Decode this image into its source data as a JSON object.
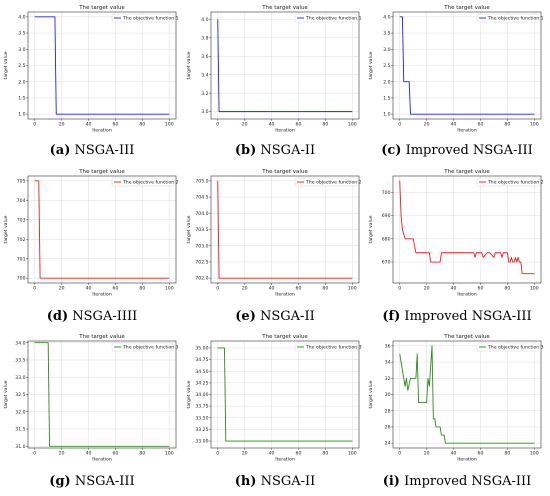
{
  "colors": {
    "series1": "#2020e0",
    "series2": "#e02020",
    "series3": "#2a8a1a",
    "grid": "#dcdcdc"
  },
  "chart_data": [
    {
      "id": "a",
      "type": "line",
      "title": "The target value",
      "xlabel": "Iteration",
      "ylabel": "target value",
      "legend": "top-right",
      "grid": true,
      "xlim": [
        -5,
        105
      ],
      "ylim": [
        0.85,
        4.15
      ],
      "xticks": [
        0,
        20,
        40,
        60,
        80,
        100
      ],
      "yticks": [
        1.0,
        1.5,
        2.0,
        2.5,
        3.0,
        3.5,
        4.0
      ],
      "xtick_labels": [
        "0",
        "20",
        "40",
        "60",
        "80",
        "100"
      ],
      "ytick_labels": [
        "1.0",
        "1.5",
        "2.0",
        "2.5",
        "3.0",
        "3.5",
        "4.0"
      ],
      "series": [
        {
          "name": "The objective function 1",
          "color": "series1",
          "x": [
            0,
            15,
            16,
            100
          ],
          "y": [
            4.0,
            4.0,
            1.0,
            1.0
          ]
        }
      ],
      "caption_letter": "(a)",
      "caption_text": " NSGA-III"
    },
    {
      "id": "b",
      "type": "line",
      "title": "The target value",
      "xlabel": "Iteration",
      "ylabel": "target value",
      "legend": "top-right",
      "grid": true,
      "xlim": [
        -5,
        105
      ],
      "ylim": [
        2.92,
        4.08
      ],
      "xticks": [
        0,
        20,
        40,
        60,
        80,
        100
      ],
      "yticks": [
        3.0,
        3.2,
        3.4,
        3.6,
        3.8,
        4.0
      ],
      "xtick_labels": [
        "0",
        "20",
        "40",
        "60",
        "80",
        "100"
      ],
      "ytick_labels": [
        "3.0",
        "3.2",
        "3.4",
        "3.6",
        "3.8",
        "4.0"
      ],
      "series": [
        {
          "name": "The objective function 1",
          "color": "series1",
          "x": [
            0,
            1,
            100
          ],
          "y": [
            4.0,
            3.0,
            3.0
          ]
        }
      ],
      "caption_letter": "(b)",
      "caption_text": " NSGA-II"
    },
    {
      "id": "c",
      "type": "line",
      "title": "The target value",
      "xlabel": "Iteration",
      "ylabel": "target value",
      "legend": "top-right",
      "grid": true,
      "xlim": [
        -5,
        105
      ],
      "ylim": [
        0.85,
        4.15
      ],
      "xticks": [
        0,
        20,
        40,
        60,
        80,
        100
      ],
      "yticks": [
        1.0,
        1.5,
        2.0,
        2.5,
        3.0,
        3.5,
        4.0
      ],
      "xtick_labels": [
        "0",
        "20",
        "40",
        "60",
        "80",
        "100"
      ],
      "ytick_labels": [
        "1.0",
        "1.5",
        "2.0",
        "2.5",
        "3.0",
        "3.5",
        "4.0"
      ],
      "series": [
        {
          "name": "The objective function 1",
          "color": "series1",
          "x": [
            0,
            2,
            3,
            7,
            8,
            100
          ],
          "y": [
            4.0,
            4.0,
            2.0,
            2.0,
            1.0,
            1.0
          ]
        }
      ],
      "caption_letter": "(c)",
      "caption_text": " Improved NSGA-III"
    },
    {
      "id": "d",
      "type": "line",
      "title": "The target value",
      "xlabel": "Iteration",
      "ylabel": "target value",
      "legend": "top-right",
      "grid": true,
      "xlim": [
        -5,
        105
      ],
      "ylim": [
        699.75,
        705.25
      ],
      "xticks": [
        0,
        20,
        40,
        60,
        80,
        100
      ],
      "yticks": [
        700,
        701,
        702,
        703,
        704,
        705
      ],
      "xtick_labels": [
        "0",
        "20",
        "40",
        "60",
        "80",
        "100"
      ],
      "ytick_labels": [
        "700",
        "701",
        "702",
        "703",
        "704",
        "705"
      ],
      "series": [
        {
          "name": "The objective function 2",
          "color": "series2",
          "x": [
            0,
            3,
            4,
            100
          ],
          "y": [
            705,
            705,
            700,
            700
          ]
        }
      ],
      "caption_letter": "(d)",
      "caption_text": " NSGA-IIII"
    },
    {
      "id": "e",
      "type": "line",
      "title": "The target value",
      "xlabel": "Iteration",
      "ylabel": "target value",
      "legend": "top-right",
      "grid": true,
      "xlim": [
        -5,
        105
      ],
      "ylim": [
        701.85,
        705.15
      ],
      "xticks": [
        0,
        20,
        40,
        60,
        80,
        100
      ],
      "yticks": [
        702.0,
        702.5,
        703.0,
        703.5,
        704.0,
        704.5,
        705.0
      ],
      "xtick_labels": [
        "0",
        "20",
        "40",
        "60",
        "80",
        "100"
      ],
      "ytick_labels": [
        "702.0",
        "702.5",
        "703.0",
        "703.5",
        "704.0",
        "704.5",
        "705.0"
      ],
      "series": [
        {
          "name": "The objective function 2",
          "color": "series2",
          "x": [
            0,
            1,
            100
          ],
          "y": [
            705,
            702,
            702
          ]
        }
      ],
      "caption_letter": "(e)",
      "caption_text": " NSGA-II"
    },
    {
      "id": "f",
      "type": "line",
      "title": "The target value",
      "xlabel": "Iteration",
      "ylabel": "target value",
      "legend": "top-right",
      "grid": true,
      "xlim": [
        -5,
        105
      ],
      "ylim": [
        661,
        707
      ],
      "xticks": [
        0,
        20,
        40,
        60,
        80,
        100
      ],
      "yticks": [
        670,
        680,
        690,
        700
      ],
      "xtick_labels": [
        "0",
        "20",
        "40",
        "60",
        "80",
        "100"
      ],
      "ytick_labels": [
        "670",
        "680",
        "690",
        "700"
      ],
      "series": [
        {
          "name": "The objective function 2",
          "color": "series2",
          "x": [
            0,
            1,
            2,
            3,
            4,
            5,
            10,
            11,
            12,
            18,
            19,
            20,
            22,
            23,
            24,
            30,
            31,
            32,
            55,
            56,
            57,
            60,
            61,
            62,
            65,
            66,
            67,
            70,
            71,
            72,
            75,
            76,
            77,
            80,
            81,
            82,
            83,
            84,
            85,
            86,
            87,
            88,
            89,
            90,
            91,
            100
          ],
          "y": [
            705,
            690,
            684,
            682,
            680,
            680,
            680,
            677,
            674,
            674,
            674,
            674,
            674,
            670,
            670,
            670,
            674,
            674,
            674,
            672,
            674,
            674,
            674,
            672,
            674,
            674,
            674,
            672,
            674,
            674,
            674,
            672,
            674,
            674,
            670,
            670,
            672,
            670,
            670,
            672,
            670,
            672,
            670,
            670,
            665,
            665
          ]
        }
      ],
      "caption_letter": "(f)",
      "caption_text": " Improved NSGA-III"
    },
    {
      "id": "g",
      "type": "line",
      "title": "The target value",
      "xlabel": "Iteration",
      "ylabel": "target value",
      "legend": "top-right",
      "grid": true,
      "xlim": [
        -5,
        105
      ],
      "ylim": [
        30.95,
        34.05
      ],
      "xticks": [
        0,
        20,
        40,
        60,
        80,
        100
      ],
      "yticks": [
        31.0,
        31.5,
        32.0,
        32.5,
        33.0,
        33.5,
        34.0
      ],
      "xtick_labels": [
        "0",
        "20",
        "40",
        "60",
        "80",
        "100"
      ],
      "ytick_labels": [
        "31.0",
        "31.5",
        "32.0",
        "32.5",
        "33.0",
        "33.5",
        "34.0"
      ],
      "series": [
        {
          "name": "The objective function 3",
          "color": "series3",
          "x": [
            0,
            10,
            11,
            100
          ],
          "y": [
            34.0,
            34.0,
            31.0,
            31.0
          ]
        }
      ],
      "caption_letter": "(g)",
      "caption_text": " NSGA-III"
    },
    {
      "id": "h",
      "type": "line",
      "title": "The target value",
      "xlabel": "Iteration",
      "ylabel": "target value",
      "legend": "top-right",
      "grid": true,
      "xlim": [
        -5,
        105
      ],
      "ylim": [
        32.85,
        35.15
      ],
      "xticks": [
        0,
        20,
        40,
        60,
        80,
        100
      ],
      "yticks": [
        33.0,
        33.25,
        33.5,
        33.75,
        34.0,
        34.25,
        34.5,
        34.75,
        35.0
      ],
      "xtick_labels": [
        "0",
        "20",
        "40",
        "60",
        "80",
        "100"
      ],
      "ytick_labels": [
        "33.00",
        "33.25",
        "33.50",
        "33.75",
        "34.00",
        "34.25",
        "34.50",
        "34.75",
        "35.00"
      ],
      "series": [
        {
          "name": "The objective function 3",
          "color": "series3",
          "x": [
            0,
            5,
            6,
            100
          ],
          "y": [
            35.0,
            35.0,
            33.0,
            33.0
          ]
        }
      ],
      "caption_letter": "(h)",
      "caption_text": " NSGA-II"
    },
    {
      "id": "i",
      "type": "line",
      "title": "The target value",
      "xlabel": "Iteration",
      "ylabel": "target value",
      "legend": "top-right",
      "grid": true,
      "xlim": [
        -5,
        105
      ],
      "ylim": [
        23.4,
        36.6
      ],
      "xticks": [
        0,
        20,
        40,
        60,
        80,
        100
      ],
      "yticks": [
        24,
        26,
        28,
        30,
        32,
        34,
        36
      ],
      "xtick_labels": [
        "0",
        "20",
        "40",
        "60",
        "80",
        "100"
      ],
      "ytick_labels": [
        "24",
        "26",
        "28",
        "30",
        "32",
        "34",
        "36"
      ],
      "series": [
        {
          "name": "The objective function 3",
          "color": "series3",
          "x": [
            0,
            2,
            4,
            5,
            6,
            8,
            10,
            12,
            13,
            14,
            15,
            20,
            21,
            22,
            24,
            25,
            26,
            27,
            28,
            29,
            30,
            31,
            32,
            33,
            34,
            35,
            36,
            37,
            38,
            100
          ],
          "y": [
            35,
            33,
            31,
            32,
            30.5,
            32,
            32,
            32,
            35,
            29,
            29,
            29,
            32,
            31,
            36,
            27,
            27,
            26,
            26,
            26,
            26,
            25,
            25,
            25,
            24,
            24,
            24,
            24,
            24,
            24
          ]
        }
      ],
      "caption_letter": "(i)",
      "caption_text": " Improved NSGA-III"
    }
  ]
}
